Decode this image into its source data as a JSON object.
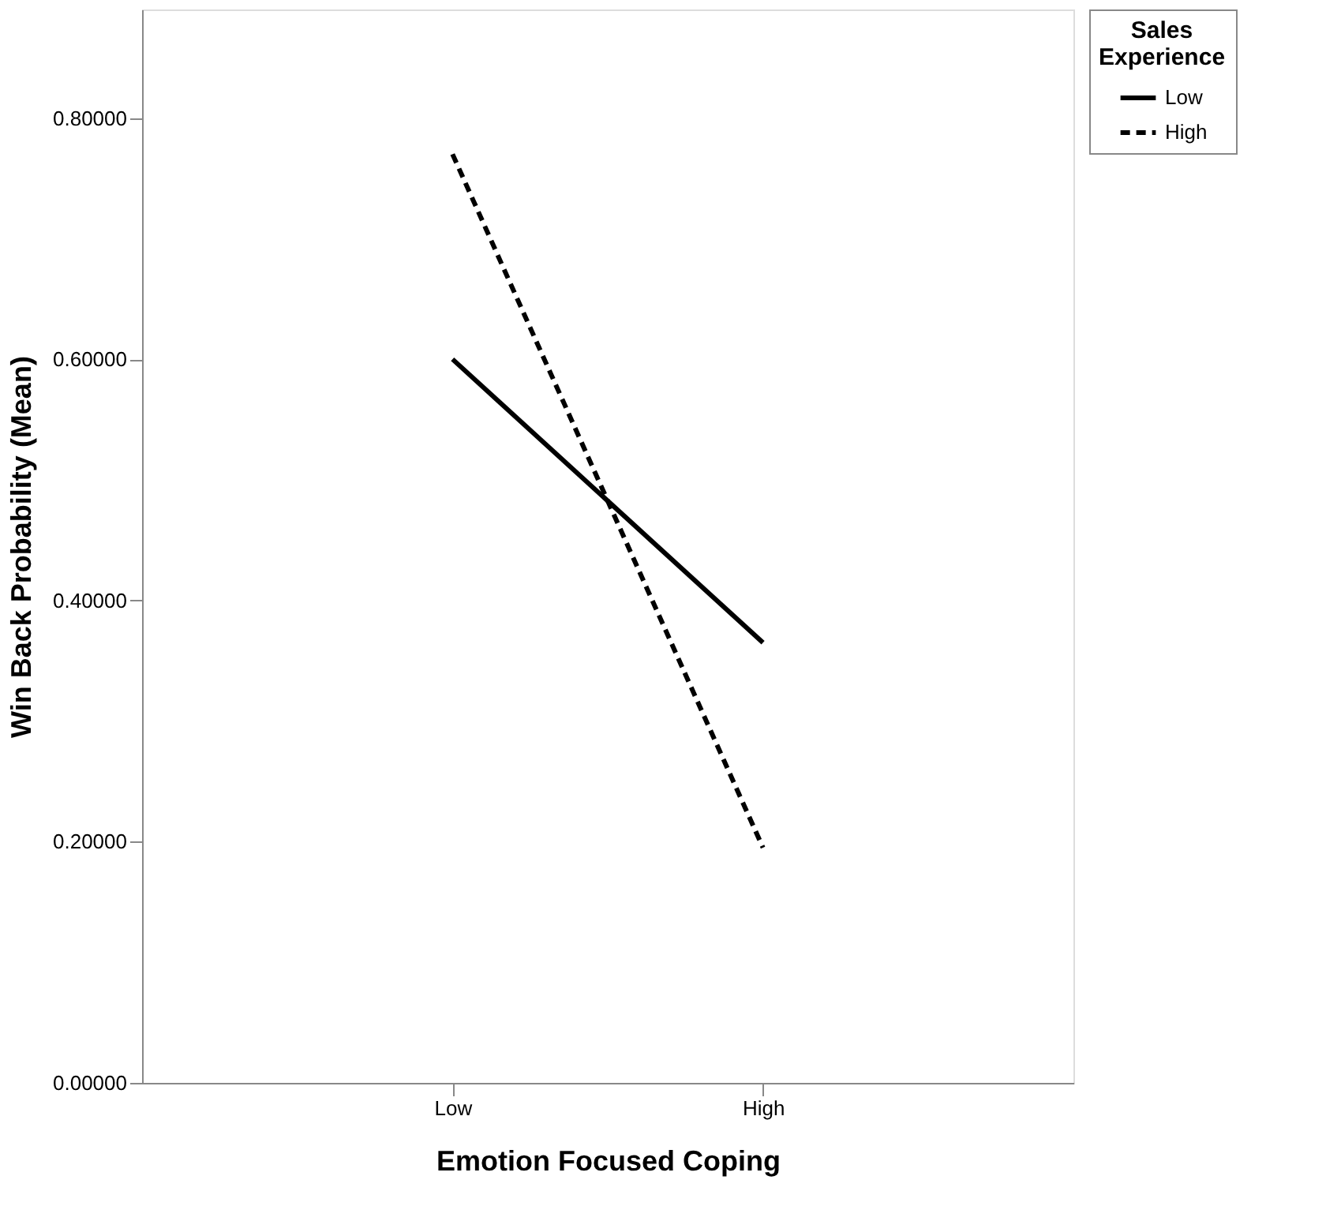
{
  "chart_data": {
    "type": "line",
    "xlabel": "Emotion Focused Coping",
    "ylabel": "Win Back Probability (Mean)",
    "legend_title": "Sales Experience",
    "legend": "top right",
    "categories": [
      "Low",
      "High"
    ],
    "ylim": [
      0,
      0.89
    ],
    "yticks": [
      {
        "value": 0,
        "label": "0.00000"
      },
      {
        "value": 0.2,
        "label": "0.20000"
      },
      {
        "value": 0.4,
        "label": "0.40000"
      },
      {
        "value": 0.6,
        "label": "0.60000"
      },
      {
        "value": 0.8,
        "label": "0.80000"
      }
    ],
    "grid": false,
    "marker": "none",
    "series": [
      {
        "name": "Low",
        "color": "#000000",
        "line_style": "solid",
        "values": [
          0.6,
          0.365
        ]
      },
      {
        "name": "High",
        "color": "#000000",
        "line_style": "dashed",
        "values": [
          0.77,
          0.195
        ]
      }
    ]
  }
}
